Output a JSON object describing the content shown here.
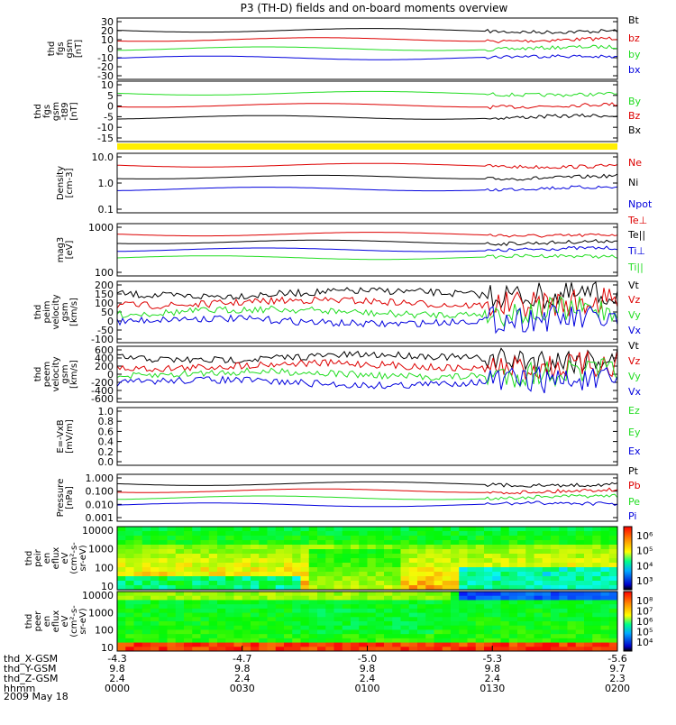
{
  "title": "P3 (TH-D) fields and on-board moments overview",
  "date": "2009 May 18",
  "colors": {
    "black": "#000000",
    "red": "#dd0000",
    "green": "#22dd22",
    "blue": "#0000dd",
    "yellow": "#ffee00"
  },
  "chart_data": [
    {
      "type": "line",
      "ylabel": [
        "thd",
        "fgs",
        "gsm",
        "[nT]"
      ],
      "ylim": [
        -30,
        30
      ],
      "yticks": [
        "30",
        "20",
        "10",
        "0",
        "-10",
        "-20",
        "-30"
      ],
      "series": [
        {
          "name": "Bt",
          "color": "#000000"
        },
        {
          "name": "bz",
          "color": "#dd0000"
        },
        {
          "name": "by",
          "color": "#22dd22"
        },
        {
          "name": "bx",
          "color": "#0000dd"
        }
      ]
    },
    {
      "type": "line",
      "ylabel": [
        "thd",
        "fgs",
        "gsm",
        "-t89",
        "[nT]"
      ],
      "ylim": [
        -17,
        13
      ],
      "yticks": [
        "10",
        "5",
        "0",
        "-5",
        "-10",
        "-15"
      ],
      "series": [
        {
          "name": "By",
          "color": "#22dd22"
        },
        {
          "name": "Bz",
          "color": "#dd0000"
        },
        {
          "name": "Bx",
          "color": "#000000"
        }
      ]
    },
    {
      "type": "line",
      "ylabel": [
        "Density",
        "[cm-3]"
      ],
      "scale": "log",
      "yticks": [
        "10.0",
        "1.0",
        "0.1"
      ],
      "series": [
        {
          "name": "Ne",
          "color": "#dd0000"
        },
        {
          "name": "Ni",
          "color": "#000000"
        },
        {
          "name": "Npot",
          "color": "#0000dd"
        }
      ]
    },
    {
      "type": "line",
      "ylabel": [
        "mag3",
        "[eV]"
      ],
      "scale": "log",
      "yticks": [
        "1000",
        "100"
      ],
      "series": [
        {
          "name": "Te⊥",
          "color": "#dd0000"
        },
        {
          "name": "Te||",
          "color": "#000000"
        },
        {
          "name": "Ti⊥",
          "color": "#0000dd"
        },
        {
          "name": "Ti||",
          "color": "#22dd22"
        }
      ]
    },
    {
      "type": "line",
      "ylabel": [
        "thd",
        "peim",
        "velocity",
        "gsm",
        "[km/s]"
      ],
      "ylim": [
        -100,
        200
      ],
      "yticks": [
        "200",
        "150",
        "100",
        "50",
        "0",
        "-50",
        "-100"
      ],
      "series": [
        {
          "name": "Vt",
          "color": "#000000"
        },
        {
          "name": "Vz",
          "color": "#dd0000"
        },
        {
          "name": "Vy",
          "color": "#22dd22"
        },
        {
          "name": "Vx",
          "color": "#0000dd"
        }
      ]
    },
    {
      "type": "line",
      "ylabel": [
        "thd",
        "peem",
        "velocity",
        "gsm",
        "[km/s]"
      ],
      "ylim": [
        -600,
        600
      ],
      "yticks": [
        "600",
        "400",
        "200",
        "0",
        "-200",
        "-400",
        "-600"
      ],
      "series": [
        {
          "name": "Vt",
          "color": "#000000"
        },
        {
          "name": "Vz",
          "color": "#dd0000"
        },
        {
          "name": "Vy",
          "color": "#22dd22"
        },
        {
          "name": "Vx",
          "color": "#0000dd"
        }
      ]
    },
    {
      "type": "line",
      "ylabel": [
        "E=-VxB",
        "[mV/m]"
      ],
      "ylim": [
        0,
        1
      ],
      "yticks": [
        "1.0",
        "0.8",
        "0.6",
        "0.4",
        "0.2",
        "0.0"
      ],
      "series": [
        {
          "name": "Ez",
          "color": "#22dd22"
        },
        {
          "name": "Ey",
          "color": "#22dd22"
        },
        {
          "name": "Ex",
          "color": "#0000dd"
        }
      ]
    },
    {
      "type": "line",
      "ylabel": [
        "Pressure",
        "[nPa]"
      ],
      "scale": "log",
      "yticks": [
        "1.000",
        "0.100",
        "0.010",
        "0.001"
      ],
      "series": [
        {
          "name": "Pt",
          "color": "#000000"
        },
        {
          "name": "Pb",
          "color": "#dd0000"
        },
        {
          "name": "Pe",
          "color": "#22dd22"
        },
        {
          "name": "Pi",
          "color": "#0000dd"
        }
      ]
    },
    {
      "type": "heatmap",
      "ylabel": [
        "thd",
        "peir",
        "en",
        "eflux",
        "eV",
        "(cm²-s-",
        "sr-eV)"
      ],
      "scale": "log",
      "yticks": [
        "10000",
        "1000",
        "100",
        "10"
      ],
      "colorbar_ticks": [
        "10⁶",
        "10⁵",
        "10⁴",
        "10³"
      ]
    },
    {
      "type": "heatmap",
      "ylabel": [
        "thd",
        "peer",
        "en",
        "eflux",
        "eV",
        "(cm²-s-",
        "sr-eV)"
      ],
      "scale": "log",
      "yticks": [
        "10000",
        "1000",
        "100",
        "10"
      ],
      "colorbar_ticks": [
        "10⁸",
        "10⁷",
        "10⁶",
        "10⁵",
        "10⁴"
      ]
    }
  ],
  "x_axis": {
    "row_labels": [
      "thd_X-GSM",
      "thd_Y-GSM",
      "thd_Z-GSM",
      "hhmm"
    ],
    "columns": [
      {
        "x": "-4.3",
        "y": "9.8",
        "z": "2.4",
        "t": "0000"
      },
      {
        "x": "-4.7",
        "y": "9.8",
        "z": "2.4",
        "t": "0030"
      },
      {
        "x": "-5.0",
        "y": "9.8",
        "z": "2.4",
        "t": "0100"
      },
      {
        "x": "-5.3",
        "y": "9.8",
        "z": "2.4",
        "t": "0130"
      },
      {
        "x": "-5.6",
        "y": "9.7",
        "z": "2.3",
        "t": "0200"
      }
    ]
  }
}
